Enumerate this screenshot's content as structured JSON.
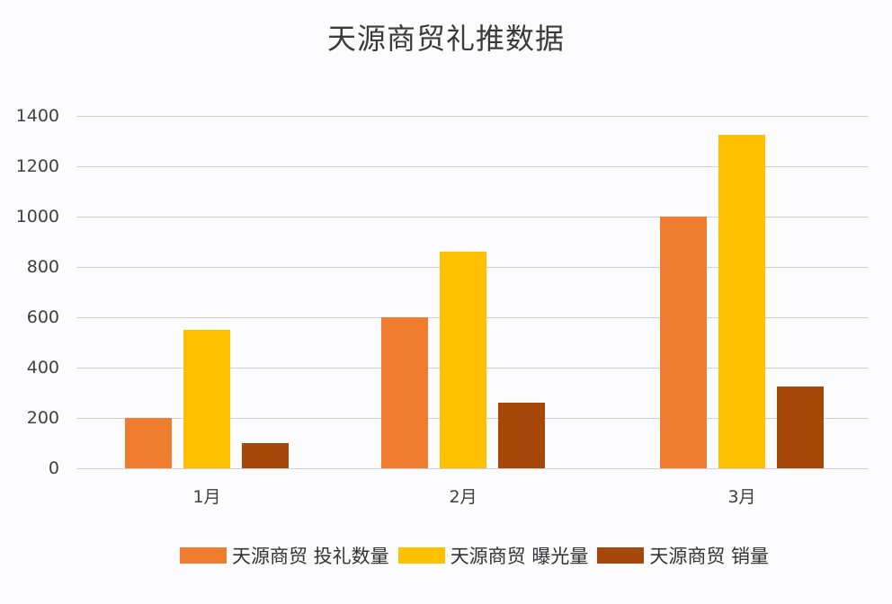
{
  "chart": {
    "title": "天源商贸礼推数据",
    "y_ticks": [
      "1400",
      "1200",
      "1000",
      "800",
      "600",
      "400",
      "200",
      "0"
    ],
    "x_ticks": [
      "1月",
      "2月",
      "3月"
    ],
    "legend": [
      {
        "label": "天源商贸 投礼数量",
        "color": "#f07c30"
      },
      {
        "label": "天源商贸 曝光量",
        "color": "#ffc000"
      },
      {
        "label": "天源商贸 销量",
        "color": "#a5480a"
      }
    ]
  },
  "chart_data": {
    "type": "bar",
    "title": "天源商贸礼推数据",
    "categories": [
      "1月",
      "2月",
      "3月"
    ],
    "series": [
      {
        "name": "天源商贸 投礼数量",
        "color": "#f07c30",
        "values": [
          200,
          600,
          1000
        ]
      },
      {
        "name": "天源商贸 曝光量",
        "color": "#ffc000",
        "values": [
          550,
          860,
          1325
        ]
      },
      {
        "name": "天源商贸 销量",
        "color": "#a5480a",
        "values": [
          100,
          260,
          325
        ]
      }
    ],
    "xlabel": "",
    "ylabel": "",
    "ylim": [
      0,
      1400
    ],
    "yticks": [
      0,
      200,
      400,
      600,
      800,
      1000,
      1200,
      1400
    ],
    "grid": true,
    "legend_position": "bottom"
  }
}
